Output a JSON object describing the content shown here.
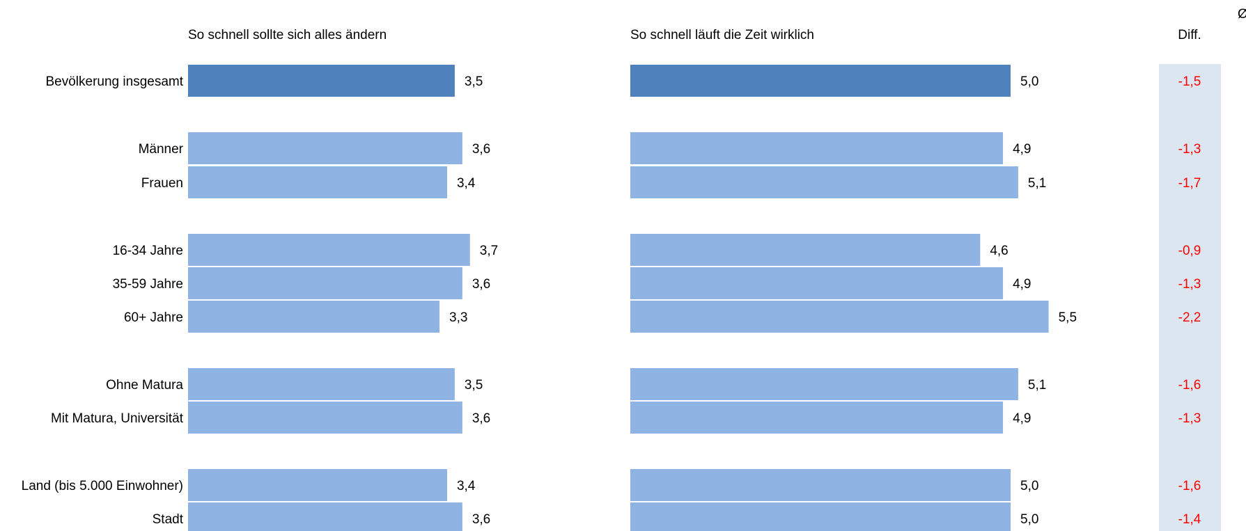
{
  "corner_symbol": "Ø",
  "colors": {
    "bar_total": "#4f81bd",
    "bar_group": "#8fb4e3",
    "diff_background": "#dce6f1",
    "diff_text": "#ff0000",
    "text": "#000000"
  },
  "chart_data": [
    {
      "type": "bar",
      "orientation": "horizontal",
      "title": "So schnell sollte sich alles ändern",
      "categories": [
        "Bevölkerung insgesamt",
        "Männer",
        "Frauen",
        "16-34 Jahre",
        "35-59 Jahre",
        "60+ Jahre",
        "Ohne Matura",
        "Mit Matura, Universität",
        "Land (bis 5.000 Einwohner)",
        "Stadt"
      ],
      "values": [
        3.5,
        3.6,
        3.4,
        3.7,
        3.6,
        3.3,
        3.5,
        3.6,
        3.4,
        3.6
      ],
      "value_labels": [
        "3,5",
        "3,6",
        "3,4",
        "3,7",
        "3,6",
        "3,3",
        "3,5",
        "3,6",
        "3,4",
        "3,6"
      ],
      "grid": false
    },
    {
      "type": "bar",
      "orientation": "horizontal",
      "title": "So schnell läuft die Zeit wirklich",
      "categories": [
        "Bevölkerung insgesamt",
        "Männer",
        "Frauen",
        "16-34 Jahre",
        "35-59 Jahre",
        "60+ Jahre",
        "Ohne Matura",
        "Mit Matura, Universität",
        "Land (bis 5.000 Einwohner)",
        "Stadt"
      ],
      "values": [
        5.0,
        4.9,
        5.1,
        4.6,
        4.9,
        5.5,
        5.1,
        4.9,
        5.0,
        5.0
      ],
      "value_labels": [
        "5,0",
        "4,9",
        "5,1",
        "4,6",
        "4,9",
        "5,5",
        "5,1",
        "4,9",
        "5,0",
        "5,0"
      ],
      "grid": false
    },
    {
      "type": "table",
      "title": "Diff.",
      "categories": [
        "Bevölkerung insgesamt",
        "Männer",
        "Frauen",
        "16-34 Jahre",
        "35-59 Jahre",
        "60+ Jahre",
        "Ohne Matura",
        "Mit Matura, Universität",
        "Land (bis 5.000 Einwohner)",
        "Stadt"
      ],
      "values": [
        -1.5,
        -1.3,
        -1.7,
        -0.9,
        -1.3,
        -2.2,
        -1.6,
        -1.3,
        -1.6,
        -1.4
      ],
      "value_labels": [
        "-1,5",
        "-1,3",
        "-1,7",
        "-0,9",
        "-1,3",
        "-2,2",
        "-1,6",
        "-1,3",
        "-1,6",
        "-1,4"
      ]
    }
  ]
}
